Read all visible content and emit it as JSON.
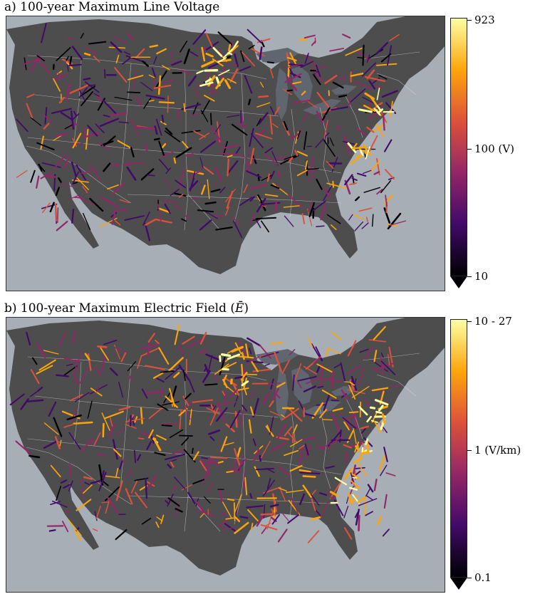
{
  "panels": [
    {
      "title": "a) 100-year Maximum Line Voltage",
      "colorbar": {
        "colormap": "inferno",
        "scale": "log",
        "extend": "min",
        "ticks": [
          "923",
          "100 (V)",
          "10"
        ]
      },
      "map": {
        "region": "Contiguous United States",
        "projection": "conic",
        "land_color": "#4d4d4d",
        "water_color": "#a7aeb6",
        "lake_color": "#5f6670",
        "border_color": "#e6e6e6",
        "highlights": [
          "Minnesota / North Dakota corridor",
          "Mid-Atlantic seaboard",
          "Virginia / Carolinas"
        ]
      }
    },
    {
      "title": "b) 100-year Maximum Electric Field (",
      "title_symbol": "Ē",
      "title_end": ")",
      "colorbar": {
        "colormap": "inferno",
        "scale": "log",
        "extend": "min",
        "ticks": [
          "10 - 27",
          "1 (V/km)",
          "0.1"
        ]
      },
      "map": {
        "region": "Contiguous United States",
        "projection": "conic",
        "land_color": "#4d4d4d",
        "water_color": "#a7aeb6",
        "lake_color": "#5f6670",
        "border_color": "#e6e6e6",
        "highlights": [
          "Upper Midwest",
          "Northeast corridor",
          "Southeast"
        ]
      }
    }
  ],
  "colors": {
    "inferno_0": "#000004",
    "inferno_1": "#420a68",
    "inferno_2": "#932667",
    "inferno_3": "#dd513a",
    "inferno_4": "#fca50a",
    "inferno_5": "#fcffa4"
  }
}
